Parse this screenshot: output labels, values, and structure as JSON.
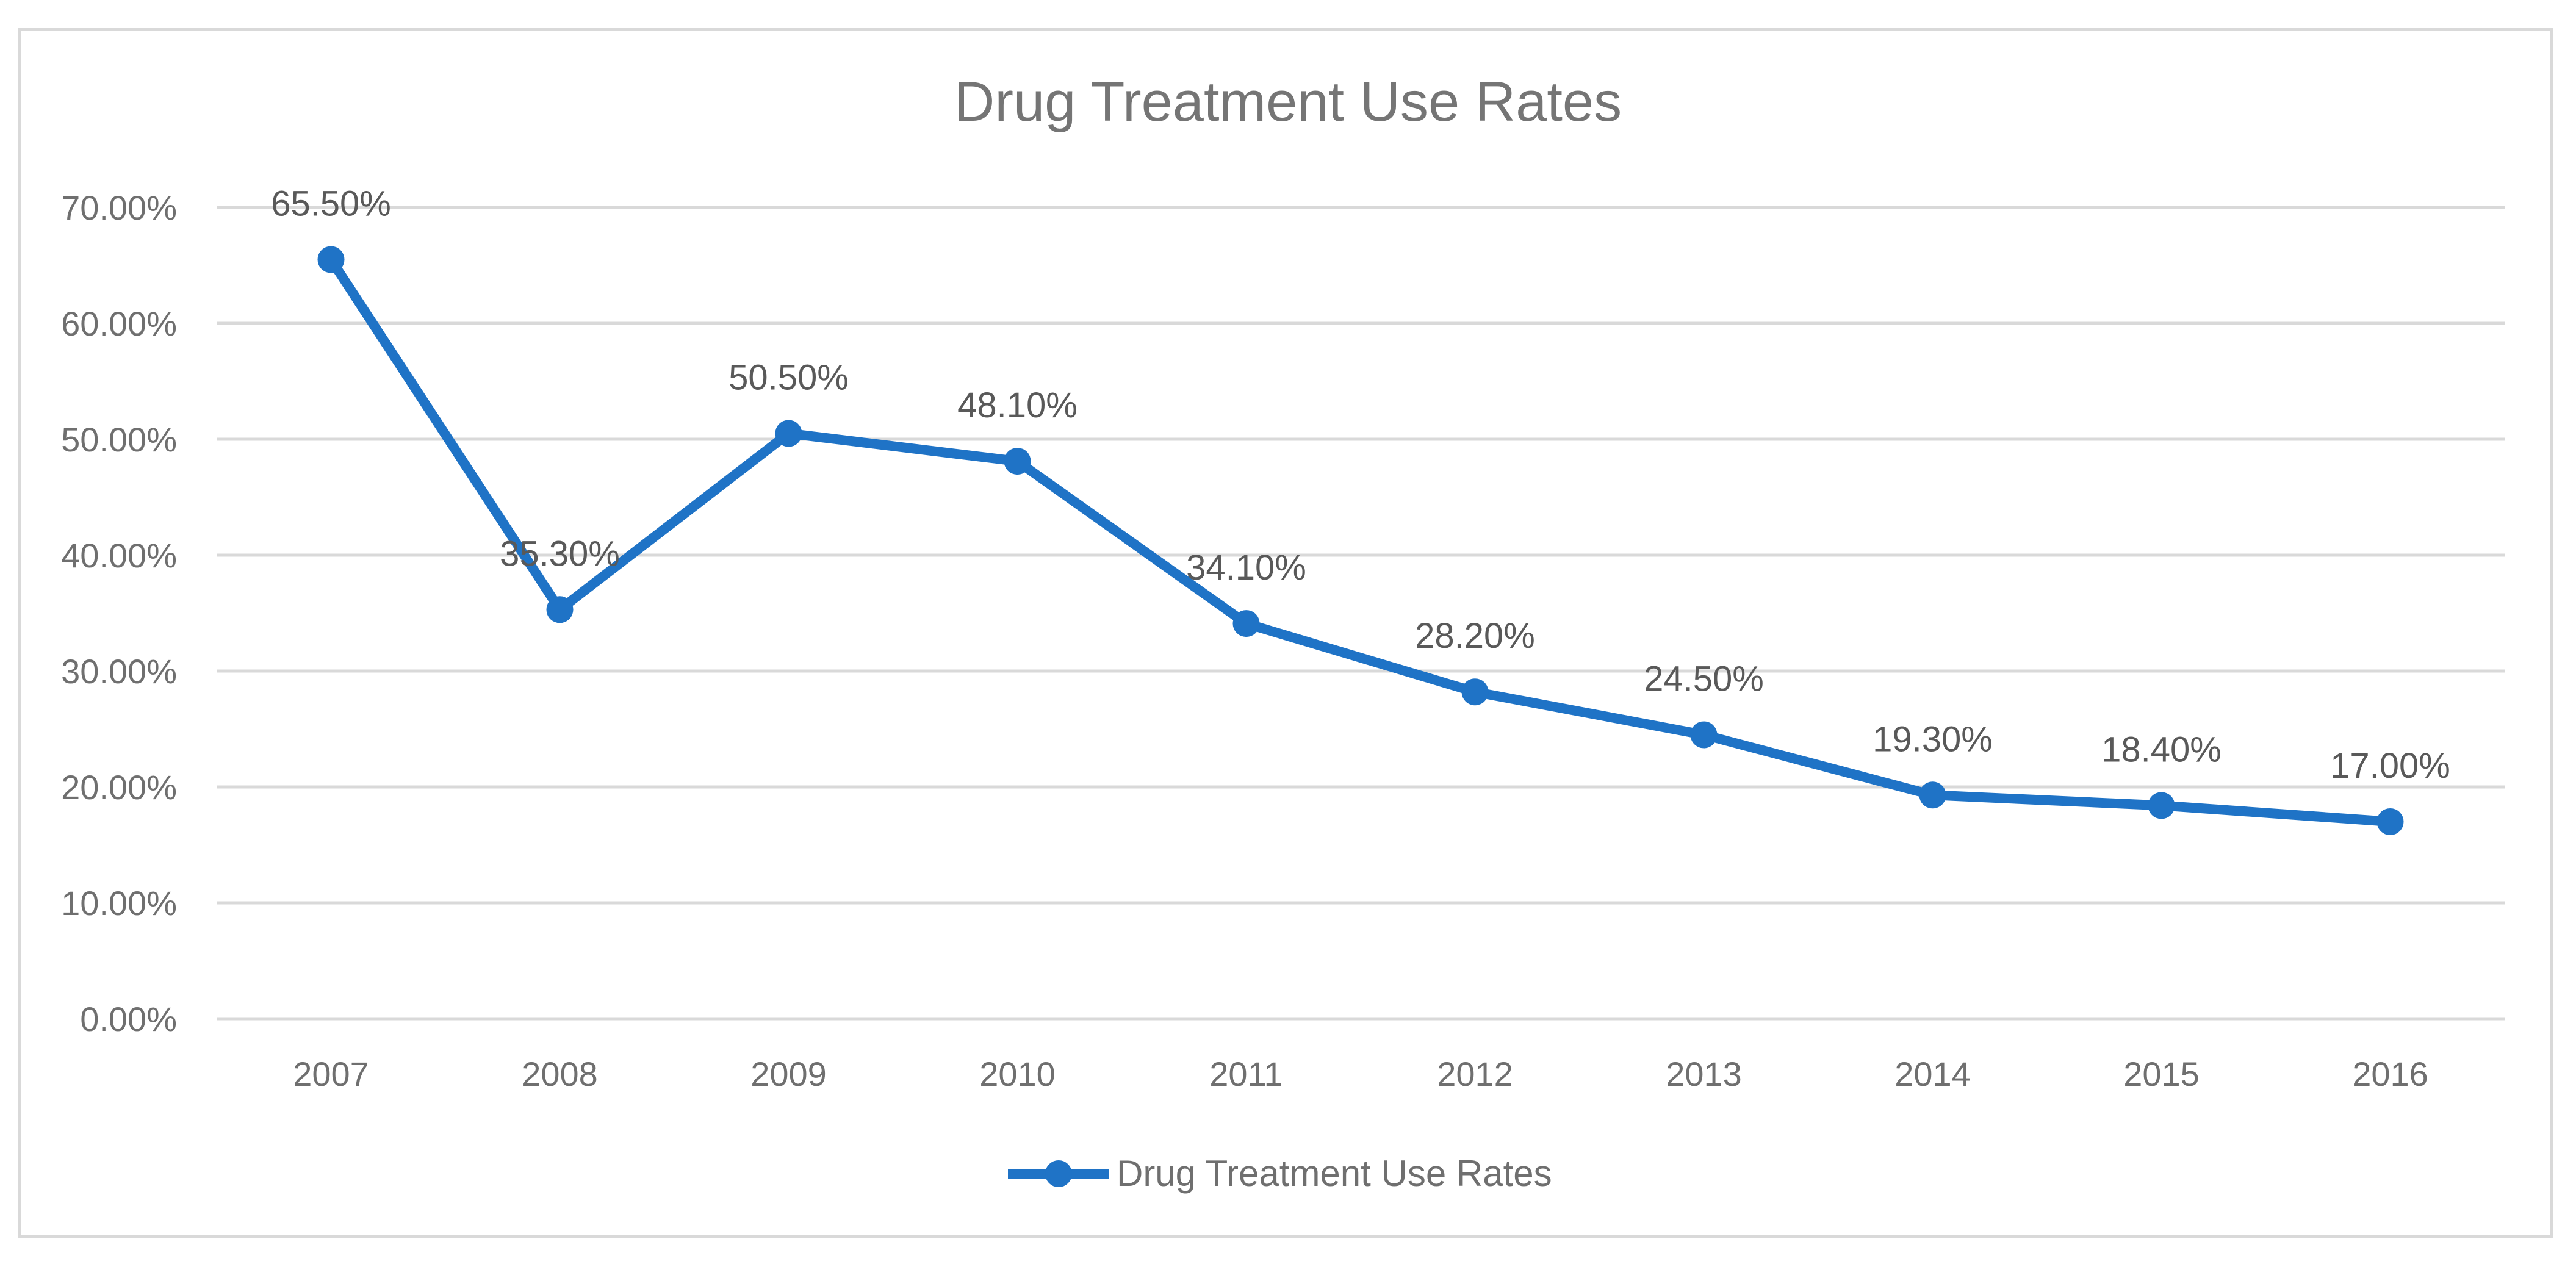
{
  "chart_data": {
    "type": "line",
    "title": "Drug Treatment Use Rates",
    "xlabel": "",
    "ylabel": "",
    "categories": [
      "2007",
      "2008",
      "2009",
      "2010",
      "2011",
      "2012",
      "2013",
      "2014",
      "2015",
      "2016"
    ],
    "series": [
      {
        "name": "Drug Treatment Use Rates",
        "values": [
          65.5,
          35.3,
          50.5,
          48.1,
          34.1,
          28.2,
          24.5,
          19.3,
          18.4,
          17.0
        ],
        "labels": [
          "65.50%",
          "35.30%",
          "50.50%",
          "48.10%",
          "34.10%",
          "28.20%",
          "24.50%",
          "19.30%",
          "18.40%",
          "17.00%"
        ]
      }
    ],
    "yticks": [
      "0.00%",
      "10.00%",
      "20.00%",
      "30.00%",
      "40.00%",
      "50.00%",
      "60.00%",
      "70.00%"
    ],
    "ylim": [
      0,
      70
    ],
    "grid": true,
    "legend_position": "bottom-center",
    "colors": {
      "series": "#1f73c6",
      "grid": "#d9d9d9"
    }
  }
}
